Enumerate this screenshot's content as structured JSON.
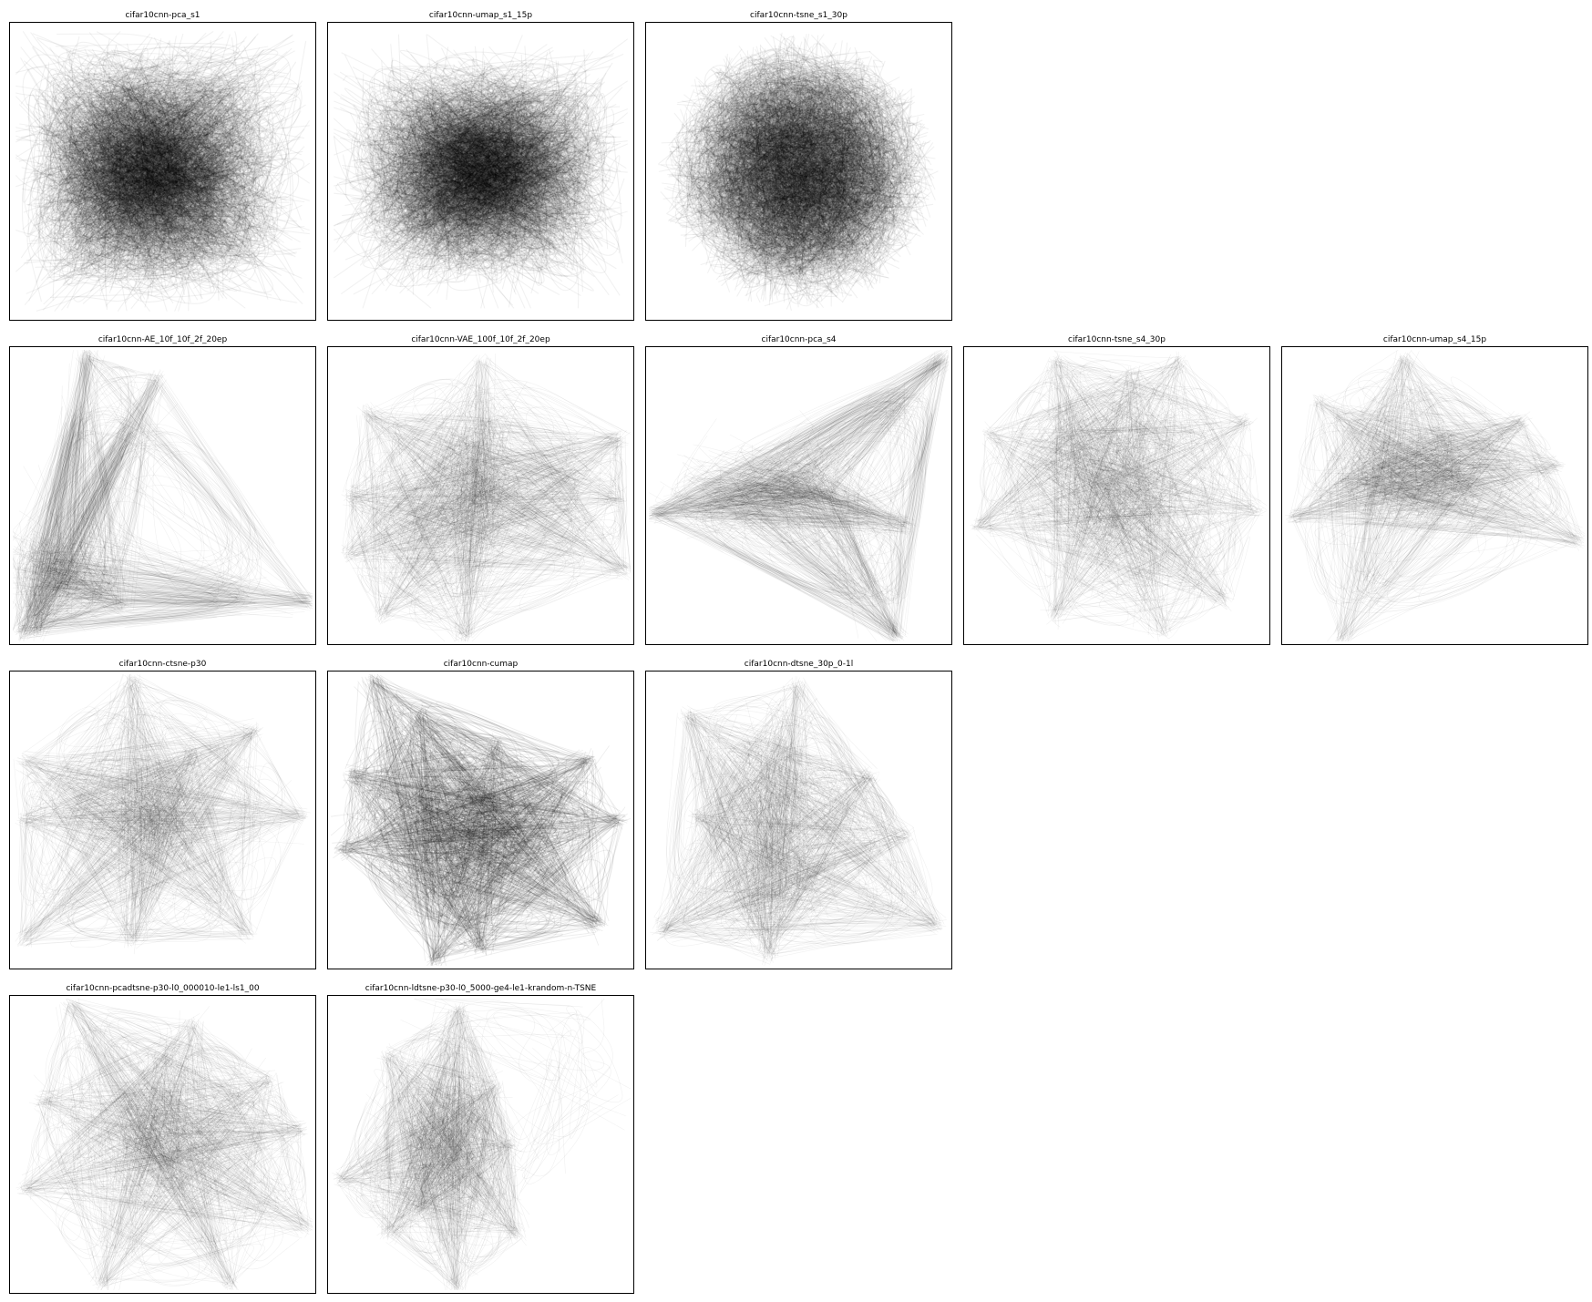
{
  "figure": {
    "description_type": "grid of 2D projection trail plots"
  },
  "chart_data": [
    {
      "type": "line",
      "title": "cifar10cnn-pca_s1",
      "style": "dense",
      "shape": "square-chaos"
    },
    {
      "type": "line",
      "title": "cifar10cnn-umap_s1_15p",
      "style": "dense",
      "shape": "wide-chaos"
    },
    {
      "type": "line",
      "title": "cifar10cnn-tsne_s1_30p",
      "style": "dense",
      "shape": "blob"
    },
    {
      "type": "line",
      "title": "cifar10cnn-AE_10f_10f_2f_20ep",
      "style": "sparse",
      "shape": "ae"
    },
    {
      "type": "line",
      "title": "cifar10cnn-VAE_100f_10f_2f_20ep",
      "style": "sparse",
      "shape": "vae"
    },
    {
      "type": "line",
      "title": "cifar10cnn-pca_s4",
      "style": "sparse",
      "shape": "triangle"
    },
    {
      "type": "line",
      "title": "cifar10cnn-tsne_s4_30p",
      "style": "sparse",
      "shape": "tsne4"
    },
    {
      "type": "line",
      "title": "cifar10cnn-umap_s4_15p",
      "style": "sparse",
      "shape": "umap4"
    },
    {
      "type": "line",
      "title": "cifar10cnn-ctsne-p30",
      "style": "sparse",
      "shape": "ctsne"
    },
    {
      "type": "line",
      "title": "cifar10cnn-cumap",
      "style": "medium",
      "shape": "cumap"
    },
    {
      "type": "line",
      "title": "cifar10cnn-dtsne_30p_0-1l",
      "style": "sparse",
      "shape": "dtsne"
    },
    {
      "type": "line",
      "title": "cifar10cnn-pcadtsne-p30-l0_000010-le1-ls1_00",
      "style": "sparse",
      "shape": "pcadtsne"
    },
    {
      "type": "line",
      "title": "cifar10cnn-ldtsne-p30-l0_5000-ge4-le1-krandom-n-TSNE",
      "style": "sparse",
      "shape": "ldtsne"
    }
  ]
}
